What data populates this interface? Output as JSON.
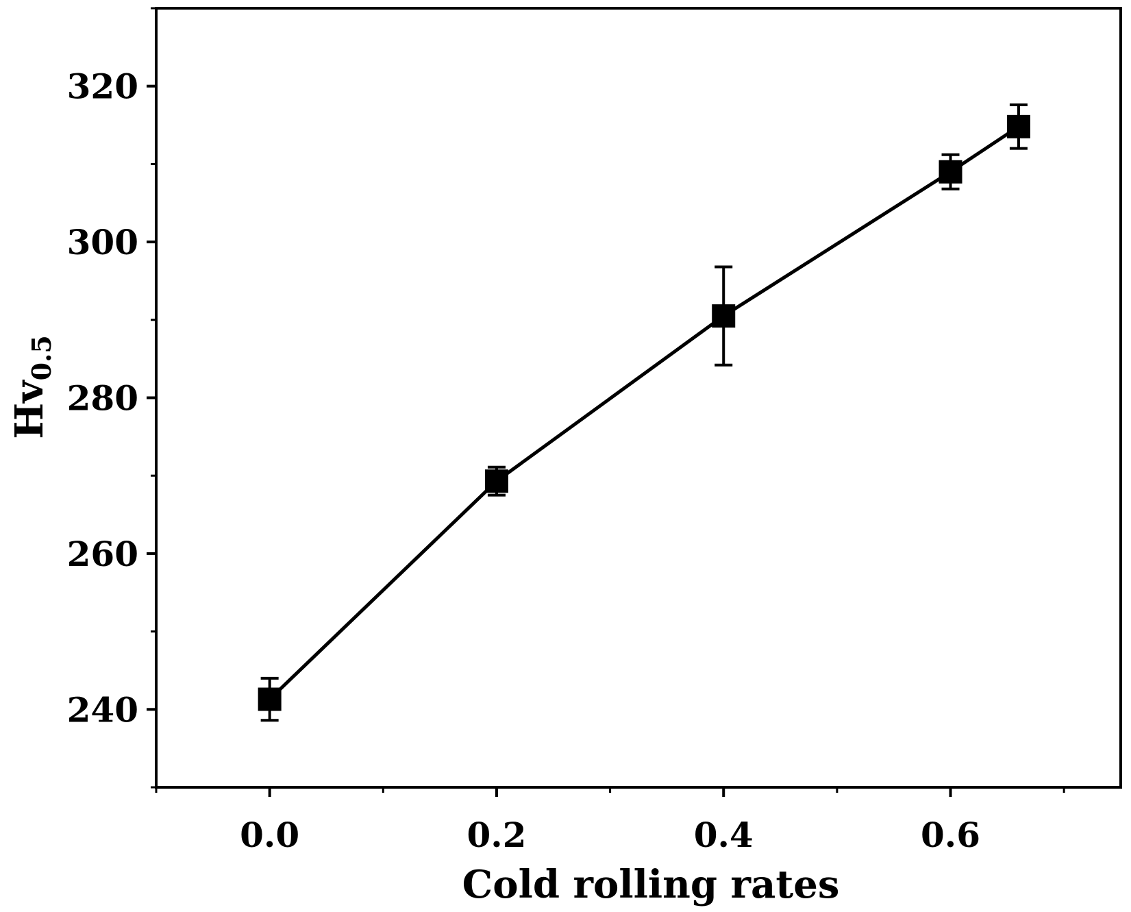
{
  "chart_data": {
    "type": "line",
    "title": "",
    "xlabel": "Cold rolling rates",
    "ylabel": "Hv",
    "ylabel_subscript": "0.5",
    "xlim": [
      -0.1,
      0.75
    ],
    "ylim": [
      230,
      330
    ],
    "xticks": [
      0.0,
      0.2,
      0.4,
      0.6
    ],
    "xtick_labels": [
      "0.0",
      "0.2",
      "0.4",
      "0.6"
    ],
    "xminor_ticks": [
      -0.1,
      0.1,
      0.3,
      0.5,
      0.7
    ],
    "yticks": [
      240,
      260,
      280,
      300,
      320
    ],
    "ytick_labels": [
      "240",
      "260",
      "280",
      "300",
      "320"
    ],
    "yminor_ticks": [
      230,
      250,
      270,
      290,
      310,
      330
    ],
    "grid": false,
    "legend": "none",
    "series": [
      {
        "name": "Hv0.5",
        "marker": "square",
        "color": "#000000",
        "x": [
          0.0,
          0.2,
          0.4,
          0.6,
          0.66
        ],
        "y": [
          241.3,
          269.3,
          290.5,
          309.0,
          314.8
        ],
        "yerr": [
          2.7,
          1.8,
          6.3,
          2.2,
          2.8
        ]
      }
    ]
  }
}
